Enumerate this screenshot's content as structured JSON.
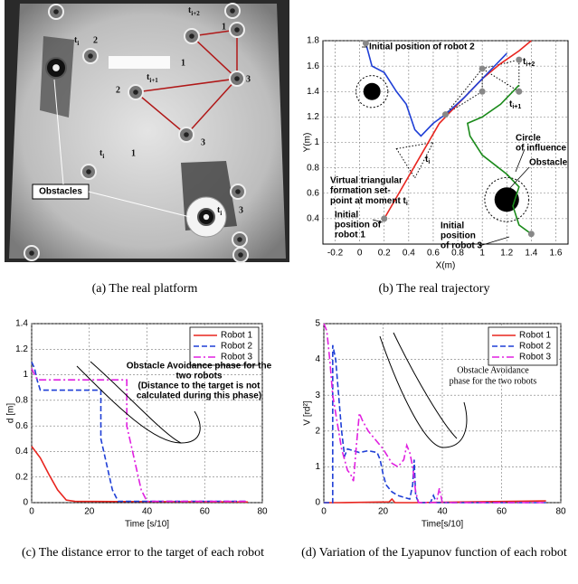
{
  "photo": {
    "labels": [
      {
        "base": "t",
        "sub": "i"
      },
      "2",
      {
        "base": "t",
        "sub": "i+2"
      },
      "1",
      {
        "base": "t",
        "sub": "i+1"
      },
      "1",
      "2",
      "3",
      "3",
      {
        "base": "t",
        "sub": "i"
      },
      "1",
      {
        "base": "t",
        "sub": "i"
      },
      "3"
    ],
    "callout": "Obstacles"
  },
  "chart_data": [
    {
      "type": "line",
      "xlabel": "X(m)",
      "ylabel": "Y(m)",
      "xlim": [
        -0.3,
        1.7
      ],
      "ylim": [
        0.2,
        1.8
      ],
      "xticks": [
        -0.2,
        0,
        0.2,
        0.4,
        0.6,
        0.8,
        1,
        1.2,
        1.4,
        1.6
      ],
      "yticks": [
        0.4,
        0.6,
        0.8,
        1,
        1.2,
        1.4,
        1.6,
        1.8
      ],
      "grid": true,
      "series": [
        {
          "color": "#e8251f",
          "dash": "solid",
          "x": [
            0.2,
            0.35,
            0.5,
            0.65,
            0.85,
            1.0,
            1.15,
            1.3,
            1.4
          ],
          "values": [
            0.4,
            0.65,
            0.9,
            1.15,
            1.35,
            1.5,
            1.62,
            1.72,
            1.8
          ]
        },
        {
          "color": "#1f3fd6",
          "dash": "solid",
          "x": [
            0.05,
            0.1,
            0.2,
            0.3,
            0.38,
            0.45,
            0.5,
            0.6,
            0.7,
            0.85,
            1.0,
            1.1,
            1.2
          ],
          "values": [
            1.78,
            1.6,
            1.55,
            1.4,
            1.3,
            1.1,
            1.05,
            1.15,
            1.22,
            1.35,
            1.5,
            1.6,
            1.7
          ]
        },
        {
          "color": "#1a8a1a",
          "dash": "solid",
          "x": [
            1.4,
            1.3,
            1.25,
            1.3,
            1.2,
            1.0,
            0.9,
            0.88,
            1.0,
            1.15,
            1.3
          ],
          "values": [
            0.28,
            0.35,
            0.5,
            0.65,
            0.75,
            0.9,
            1.05,
            1.15,
            1.2,
            1.3,
            1.45
          ]
        }
      ],
      "points": {
        "color": "#888888",
        "x": [
          0.05,
          0.2,
          1.4,
          0.7,
          1.0,
          1.0,
          1.3,
          1.3
        ],
        "y": [
          1.78,
          0.4,
          0.28,
          1.22,
          1.4,
          1.58,
          1.4,
          1.65
        ]
      },
      "formations": [
        {
          "x": [
            0.3,
            0.6,
            0.45
          ],
          "y": [
            0.95,
            1.0,
            0.72
          ]
        },
        {
          "x": [
            0.7,
            1.0,
            1.0
          ],
          "y": [
            1.22,
            1.58,
            1.4
          ]
        },
        {
          "x": [
            1.0,
            1.3,
            1.3
          ],
          "y": [
            1.58,
            1.65,
            1.4
          ]
        }
      ],
      "obstacles": [
        {
          "x": 0.1,
          "y": 1.4,
          "r": 0.07,
          "influence": 0.13
        },
        {
          "x": 1.2,
          "y": 0.55,
          "r": 0.1,
          "influence": 0.18
        }
      ],
      "annotations": [
        [
          "Initial position of robot 2"
        ],
        [
          {
            "base": "t",
            "sub": "i+2"
          }
        ],
        [
          {
            "base": "t",
            "sub": "i+1"
          }
        ],
        [
          {
            "base": "t",
            "sub": "i"
          }
        ],
        [
          "Virtual triangular",
          "formation set-",
          {
            "base": "point at moment t",
            "sub": "i"
          }
        ],
        [
          "Circle",
          "of influence"
        ],
        [
          "Obstacle"
        ],
        [
          "Initial",
          "position of",
          "robot 1"
        ],
        [
          "Initial",
          "position",
          "of robot 3"
        ]
      ]
    },
    {
      "type": "line",
      "xlabel": "Time [s/10]",
      "ylabel": "d [m]",
      "xlim": [
        0,
        80
      ],
      "ylim": [
        0,
        1.4
      ],
      "xticks": [
        0,
        20,
        40,
        60,
        80
      ],
      "yticks": [
        0,
        0.2,
        0.4,
        0.6,
        0.8,
        1,
        1.2,
        1.4
      ],
      "grid": true,
      "legend": "upper right",
      "series": [
        {
          "name": "Robot 1",
          "color": "#e8251f",
          "dash": "solid",
          "x": [
            0,
            3,
            6,
            9,
            12,
            15,
            75
          ],
          "values": [
            0.44,
            0.35,
            0.22,
            0.1,
            0.02,
            0.01,
            0.005
          ]
        },
        {
          "name": "Robot 2",
          "color": "#1f3fd6",
          "dash": "dashed",
          "x": [
            0,
            1,
            2,
            3,
            24,
            24,
            26,
            28,
            30,
            75
          ],
          "values": [
            1.1,
            1.05,
            0.95,
            0.88,
            0.88,
            0.5,
            0.3,
            0.1,
            0.01,
            0.01
          ]
        },
        {
          "name": "Robot 3",
          "color": "#e020e0",
          "dash": "dashdot",
          "x": [
            0,
            1,
            2,
            33,
            33,
            35,
            38,
            40,
            75
          ],
          "values": [
            1.05,
            1.0,
            0.96,
            0.96,
            0.6,
            0.4,
            0.1,
            0.01,
            0.01
          ]
        }
      ],
      "annotation": [
        "Obstacle Avoidance phase for the",
        "two robots",
        "(Distance to the target is not",
        "calculated during this phase)"
      ]
    },
    {
      "type": "line",
      "xlabel": "Time[s/10]",
      "ylabel": "V [rd²]",
      "xlim": [
        0,
        80
      ],
      "ylim": [
        0,
        5
      ],
      "xticks": [
        0,
        20,
        40,
        60,
        80
      ],
      "yticks": [
        0,
        1,
        2,
        3,
        4,
        5
      ],
      "grid": true,
      "legend": "upper right",
      "series": [
        {
          "name": "Robot 1",
          "color": "#e8251f",
          "dash": "solid",
          "x": [
            0,
            5,
            22,
            23,
            24,
            30,
            75
          ],
          "values": [
            0,
            0,
            0.02,
            0.1,
            0,
            0,
            0.05
          ]
        },
        {
          "name": "Robot 2",
          "color": "#1f3fd6",
          "dash": "dashed",
          "x": [
            0,
            3,
            3,
            4,
            5,
            6,
            7,
            8,
            10,
            12,
            15,
            18,
            19,
            20,
            21,
            23,
            25,
            29,
            30,
            30.5,
            31,
            32,
            36,
            37,
            38,
            75
          ],
          "values": [
            0,
            0,
            4.4,
            4,
            3,
            2,
            1.3,
            1.5,
            1.45,
            1.4,
            1.45,
            1.4,
            1.2,
            0.8,
            0.5,
            0.3,
            0.2,
            0.1,
            0.5,
            1.2,
            0.2,
            0,
            0,
            0.2,
            0,
            0
          ]
        },
        {
          "name": "Robot 3",
          "color": "#e020e0",
          "dash": "dashdot",
          "x": [
            0,
            1,
            2,
            3,
            4,
            5,
            6,
            7,
            8,
            9,
            10,
            11,
            12,
            13,
            15,
            17,
            20,
            23,
            25,
            27,
            28,
            29,
            30,
            31,
            32,
            38,
            39,
            40,
            75
          ],
          "values": [
            5,
            4.8,
            4,
            3,
            2.5,
            2,
            1.5,
            1.2,
            0.9,
            0.8,
            0.6,
            1.6,
            2.5,
            2.3,
            2,
            1.8,
            1.5,
            1.1,
            1,
            1.2,
            1.6,
            1.4,
            1,
            0.3,
            0,
            0,
            0.4,
            0,
            0
          ]
        }
      ],
      "annotation": [
        "Obstacle Avoidance",
        "phase for the two robots"
      ]
    }
  ],
  "captions": [
    "(a) The real platform",
    "(b) The real trajectory",
    "(c) The distance error to the target of each robot",
    "(d) Variation of the Lyapunov function of each robot"
  ]
}
